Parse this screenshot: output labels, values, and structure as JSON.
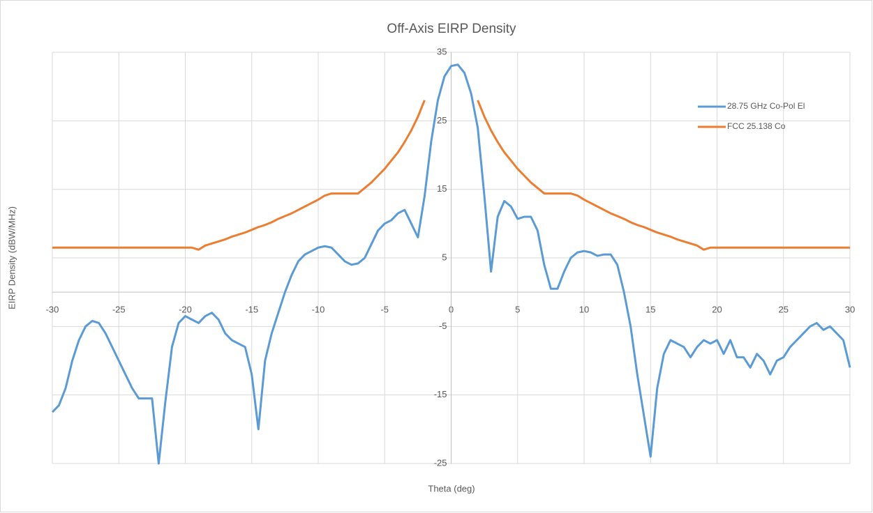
{
  "chart_data": {
    "type": "line",
    "title": "Off-Axis EIRP Density",
    "x_label": "Theta (deg)",
    "y_label": "EIRP Density (dBW/MHz)",
    "x": [
      -30,
      -29.5,
      -29,
      -28.5,
      -28,
      -27.5,
      -27,
      -26.5,
      -26,
      -25.5,
      -25,
      -24.5,
      -24,
      -23.5,
      -23,
      -22.5,
      -22,
      -21.5,
      -21,
      -20.5,
      -20,
      -19.5,
      -19,
      -18.5,
      -18,
      -17.5,
      -17,
      -16.5,
      -16,
      -15.5,
      -15,
      -14.5,
      -14,
      -13.5,
      -13,
      -12.5,
      -12,
      -11.5,
      -11,
      -10.5,
      -10,
      -9.5,
      -9,
      -8.5,
      -8,
      -7.5,
      -7,
      -6.5,
      -6,
      -5.5,
      -5,
      -4.5,
      -4,
      -3.5,
      -3,
      -2.5,
      -2,
      -1.5,
      -1,
      -0.5,
      0,
      0.5,
      1,
      1.5,
      2,
      2.5,
      3,
      3.5,
      4,
      4.5,
      5,
      5.5,
      6,
      6.5,
      7,
      7.5,
      8,
      8.5,
      9,
      9.5,
      10,
      10.5,
      11,
      11.5,
      12,
      12.5,
      13,
      13.5,
      14,
      14.5,
      15,
      15.5,
      16,
      16.5,
      17,
      17.5,
      18,
      18.5,
      19,
      19.5,
      20,
      20.5,
      21,
      21.5,
      22,
      22.5,
      23,
      23.5,
      24,
      24.5,
      25,
      25.5,
      26,
      26.5,
      27,
      27.5,
      28,
      28.5,
      29,
      29.5,
      30
    ],
    "series": [
      {
        "name": "28.75 GHz Co-Pol El",
        "color": "#5b9bd5",
        "values": [
          -17.5,
          -16.5,
          -14,
          -10,
          -7,
          -5,
          -4.2,
          -4.5,
          -6,
          -8,
          -10,
          -12,
          -14,
          -15.5,
          -15.5,
          -15.5,
          -25,
          -16,
          -8,
          -4.5,
          -3.5,
          -4,
          -4.5,
          -3.5,
          -3,
          -4,
          -6,
          -7,
          -7.5,
          -8,
          -12,
          -20,
          -10,
          -6,
          -3,
          0,
          2.5,
          4.5,
          5.5,
          6,
          6.5,
          6.7,
          6.5,
          5.5,
          4.5,
          4,
          4.2,
          5,
          7,
          9,
          10,
          10.5,
          11.5,
          12,
          10,
          8,
          14,
          22,
          28,
          31.5,
          33,
          33.2,
          32,
          29,
          24,
          14,
          3,
          11,
          13.3,
          12.5,
          10.7,
          11,
          11,
          9,
          4,
          0.5,
          0.5,
          3,
          5,
          5.8,
          6,
          5.8,
          5.3,
          5.5,
          5.5,
          4,
          0,
          -5,
          -12,
          -18,
          -24,
          -14,
          -9,
          -7,
          -7.5,
          -8,
          -9.5,
          -8,
          -7,
          -7.5,
          -7,
          -9,
          -7,
          -9.5,
          -9.5,
          -11,
          -9,
          -10,
          -12,
          -10,
          -9.5,
          -8,
          -7,
          -6,
          -5,
          -4.5,
          -5.5,
          -5,
          -6,
          -7,
          -11
        ]
      },
      {
        "name": "FCC 25.138 Co",
        "color": "#ed7d31",
        "values": [
          6.5,
          6.5,
          6.5,
          6.5,
          6.5,
          6.5,
          6.5,
          6.5,
          6.5,
          6.5,
          6.5,
          6.5,
          6.5,
          6.5,
          6.5,
          6.5,
          6.5,
          6.5,
          6.5,
          6.5,
          6.5,
          6.5,
          6.2,
          6.8,
          7.1,
          7.4,
          7.7,
          8.1,
          8.4,
          8.7,
          9.1,
          9.5,
          9.8,
          10.2,
          10.7,
          11.1,
          11.5,
          12.0,
          12.5,
          13.0,
          13.5,
          14.1,
          14.4,
          14.4,
          14.4,
          14.4,
          14.4,
          15.2,
          16.0,
          17.0,
          18.0,
          19.2,
          20.4,
          21.9,
          23.6,
          25.6,
          28.0,
          null,
          null,
          null,
          null,
          null,
          null,
          null,
          28.0,
          25.6,
          23.6,
          21.9,
          20.4,
          19.2,
          18.0,
          17.0,
          16.0,
          15.2,
          14.4,
          14.4,
          14.4,
          14.4,
          14.4,
          14.1,
          13.5,
          13.0,
          12.5,
          12.0,
          11.5,
          11.1,
          10.7,
          10.2,
          9.8,
          9.5,
          9.1,
          8.7,
          8.4,
          8.1,
          7.7,
          7.4,
          7.1,
          6.8,
          6.2,
          6.5,
          6.5,
          6.5,
          6.5,
          6.5,
          6.5,
          6.5,
          6.5,
          6.5,
          6.5,
          6.5,
          6.5,
          6.5,
          6.5,
          6.5,
          6.5,
          6.5,
          6.5,
          6.5,
          6.5,
          6.5,
          6.5
        ]
      }
    ],
    "xlim": [
      -30,
      30
    ],
    "ylim": [
      -25,
      35
    ],
    "xticks": [
      -30,
      -25,
      -20,
      -15,
      -10,
      -5,
      0,
      5,
      10,
      15,
      20,
      25,
      30
    ],
    "yticks": [
      35,
      25,
      15,
      5,
      -5,
      -15,
      -25
    ],
    "grid": true,
    "legend": "upper right"
  }
}
